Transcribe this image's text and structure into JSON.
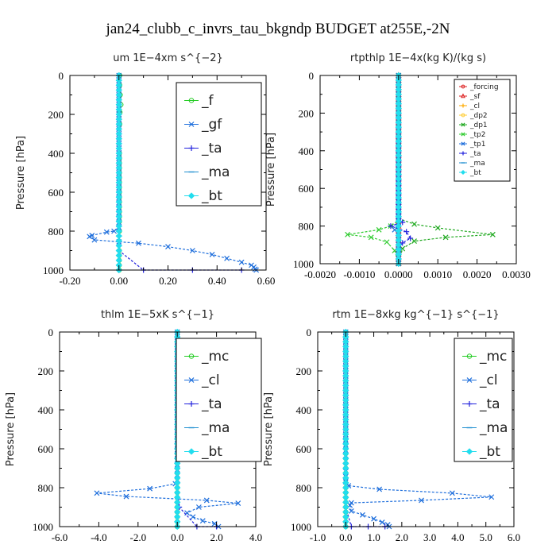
{
  "figure_title": "jan24_clubb_c_invrs_tau_bkgndp  BUDGET at255E,-2N",
  "chart_data": [
    {
      "type": "line",
      "title": "um   1E−4xm  s^{−2}",
      "ylabel": "Pressure [hPa]",
      "xlim": [
        -0.2,
        0.6
      ],
      "ylim": [
        1000,
        0
      ],
      "xticks": [
        "-0.20",
        "0.00",
        "0.20",
        "0.40",
        "0.60"
      ],
      "yticks": [
        "0",
        "200",
        "400",
        "600",
        "800",
        "1000"
      ],
      "legend_position": "top-right",
      "series": [
        {
          "name": "_f",
          "color": "#22cc22",
          "marker": "circle",
          "points": [
            [
              0.003,
              0
            ],
            [
              0.003,
              50
            ],
            [
              0.005,
              100
            ],
            [
              0.008,
              150
            ],
            [
              0.004,
              190
            ],
            [
              0.003,
              250
            ],
            [
              0.002,
              400
            ],
            [
              0.002,
              600
            ],
            [
              0.002,
              750
            ],
            [
              0.002,
              800
            ],
            [
              0.001,
              900
            ],
            [
              0.001,
              1000
            ]
          ]
        },
        {
          "name": "_gf",
          "color": "#1f6fdc",
          "marker": "x",
          "points": [
            [
              0,
              0
            ],
            [
              0,
              500
            ],
            [
              0,
              780
            ],
            [
              -0.02,
              800
            ],
            [
              -0.05,
              805
            ],
            [
              -0.11,
              822
            ],
            [
              -0.12,
              828
            ],
            [
              -0.1,
              845
            ],
            [
              0.0,
              855
            ],
            [
              0.08,
              862
            ],
            [
              0.2,
              880
            ],
            [
              0.3,
              900
            ],
            [
              0.38,
              920
            ],
            [
              0.44,
              940
            ],
            [
              0.5,
              960
            ],
            [
              0.54,
              975
            ],
            [
              0.55,
              985
            ],
            [
              0.555,
              995
            ],
            [
              0.56,
              1000
            ]
          ]
        },
        {
          "name": "_ta",
          "color": "#2222dd",
          "marker": "plus",
          "points": [
            [
              0,
              0
            ],
            [
              0,
              500
            ],
            [
              0,
              800
            ],
            [
              0,
              900
            ],
            [
              0.1,
              1000
            ],
            [
              0.3,
              1000
            ],
            [
              0.5,
              1000
            ]
          ]
        },
        {
          "name": "_ma",
          "color": "#1f8fd0",
          "marker": "dash",
          "points": [
            [
              0,
              0
            ],
            [
              0,
              1000
            ]
          ]
        },
        {
          "name": "_bt",
          "color": "#22ddee",
          "marker": "diamond",
          "points": [
            [
              0,
              0
            ],
            [
              0,
              1000
            ]
          ]
        }
      ]
    },
    {
      "type": "line",
      "title": "rtpthlp   1E−4x(kg K)/(kg s)",
      "ylabel": "Pressure [hPa]",
      "xlim": [
        -0.002,
        0.003
      ],
      "ylim": [
        1000,
        0
      ],
      "xticks": [
        "-0.0020",
        "-0.0010",
        "0.0000",
        "0.0010",
        "0.0020",
        "0.0030"
      ],
      "yticks": [
        "0",
        "200",
        "400",
        "600",
        "800",
        "1000"
      ],
      "legend_position": "top-right",
      "series": [
        {
          "name": "_forcing",
          "color": "#dd2222",
          "marker": "circle",
          "points": [
            [
              0,
              0
            ],
            [
              0,
              1000
            ]
          ]
        },
        {
          "name": "_sf",
          "color": "#dd2222",
          "marker": "triangle",
          "points": [
            [
              0,
              0
            ],
            [
              0,
              1000
            ]
          ]
        },
        {
          "name": "_cl",
          "color": "#ffaa00",
          "marker": "plus",
          "points": [
            [
              0,
              0
            ],
            [
              0,
              1000
            ]
          ]
        },
        {
          "name": "_dp2",
          "color": "#ffcc33",
          "marker": "circle",
          "points": [
            [
              0,
              0
            ],
            [
              0,
              1000
            ]
          ]
        },
        {
          "name": "_dp1",
          "color": "#22aa22",
          "marker": "x",
          "points": [
            [
              0,
              0
            ],
            [
              0,
              760
            ],
            [
              0.0004,
              790
            ],
            [
              0.001,
              810
            ],
            [
              0.0024,
              845
            ],
            [
              0.0012,
              860
            ],
            [
              0.0004,
              880
            ],
            [
              0.0001,
              920
            ],
            [
              0,
              1000
            ]
          ]
        },
        {
          "name": "_tp2",
          "color": "#33cc33",
          "marker": "x",
          "points": [
            [
              0,
              0
            ],
            [
              0,
              770
            ],
            [
              -0.0002,
              800
            ],
            [
              -0.0005,
              820
            ],
            [
              -0.0013,
              845
            ],
            [
              -0.0007,
              860
            ],
            [
              -0.0003,
              885
            ],
            [
              -0.0001,
              930
            ],
            [
              0,
              1000
            ]
          ]
        },
        {
          "name": "_tp1",
          "color": "#1f6fdc",
          "marker": "x",
          "points": [
            [
              0,
              0
            ],
            [
              0,
              780
            ],
            [
              -0.0001,
              820
            ],
            [
              0,
              850
            ],
            [
              0,
              1000
            ]
          ]
        },
        {
          "name": "_ta",
          "color": "#2222dd",
          "marker": "plus",
          "points": [
            [
              0,
              0
            ],
            [
              0,
              760
            ],
            [
              0.0001,
              780
            ],
            [
              -0.0002,
              800
            ],
            [
              0.0002,
              830
            ],
            [
              0.0003,
              865
            ],
            [
              0.0001,
              890
            ],
            [
              0,
              920
            ],
            [
              0,
              1000
            ]
          ]
        },
        {
          "name": "_ma",
          "color": "#1f8fd0",
          "marker": "dash",
          "points": [
            [
              0,
              0
            ],
            [
              0,
              1000
            ]
          ]
        },
        {
          "name": "_bt",
          "color": "#22ddee",
          "marker": "diamond",
          "points": [
            [
              0,
              0
            ],
            [
              0,
              1000
            ]
          ]
        }
      ]
    },
    {
      "type": "line",
      "title": "thlm   1E−5xK  s^{−1}",
      "ylabel": "Pressure [hPa]",
      "xlim": [
        -6.0,
        4.0
      ],
      "ylim": [
        1000,
        0
      ],
      "xticks": [
        "-6.0",
        "-4.0",
        "-2.0",
        "0.0",
        "2.0",
        "4.0"
      ],
      "yticks": [
        "0",
        "200",
        "400",
        "600",
        "800",
        "1000"
      ],
      "legend_position": "top-right",
      "series": [
        {
          "name": "_mc",
          "color": "#22cc22",
          "marker": "circle",
          "points": [
            [
              0,
              0
            ],
            [
              0,
              1000
            ]
          ]
        },
        {
          "name": "_cl",
          "color": "#1f6fdc",
          "marker": "x",
          "points": [
            [
              0,
              0
            ],
            [
              0,
              500
            ],
            [
              0,
              760
            ],
            [
              -0.1,
              780
            ],
            [
              -1.4,
              805
            ],
            [
              -4.1,
              828
            ],
            [
              -2.6,
              845
            ],
            [
              1.5,
              865
            ],
            [
              3.1,
              880
            ],
            [
              1.1,
              900
            ],
            [
              0.5,
              930
            ],
            [
              0.8,
              950
            ],
            [
              1.3,
              970
            ],
            [
              1.9,
              985
            ],
            [
              2.1,
              1000
            ]
          ]
        },
        {
          "name": "_ta",
          "color": "#2222dd",
          "marker": "plus",
          "points": [
            [
              0,
              0
            ],
            [
              0,
              800
            ],
            [
              0.1,
              900
            ],
            [
              1.0,
              1000
            ],
            [
              2.0,
              1000
            ]
          ]
        },
        {
          "name": "_ma",
          "color": "#1f8fd0",
          "marker": "dash",
          "points": [
            [
              0,
              0
            ],
            [
              0,
              1000
            ]
          ]
        },
        {
          "name": "_bt",
          "color": "#22ddee",
          "marker": "diamond",
          "points": [
            [
              0,
              0
            ],
            [
              0,
              1000
            ]
          ]
        }
      ]
    },
    {
      "type": "line",
      "title": "rtm   1E−8xkg  kg^{−1}  s^{−1}",
      "ylabel": "Pressure [hPa]",
      "xlim": [
        -1.0,
        6.0
      ],
      "ylim": [
        1000,
        0
      ],
      "xticks": [
        "-1.0",
        "0.0",
        "1.0",
        "2.0",
        "3.0",
        "4.0",
        "5.0",
        "6.0"
      ],
      "yticks": [
        "0",
        "200",
        "400",
        "600",
        "800",
        "1000"
      ],
      "legend_position": "top-right",
      "series": [
        {
          "name": "_mc",
          "color": "#22cc22",
          "marker": "circle",
          "points": [
            [
              0,
              0
            ],
            [
              0,
              1000
            ]
          ]
        },
        {
          "name": "_cl",
          "color": "#1f6fdc",
          "marker": "x",
          "points": [
            [
              0,
              0
            ],
            [
              0,
              500
            ],
            [
              0,
              770
            ],
            [
              0.1,
              790
            ],
            [
              1.2,
              808
            ],
            [
              3.8,
              828
            ],
            [
              5.2,
              848
            ],
            [
              2.7,
              865
            ],
            [
              0.2,
              878
            ],
            [
              0.15,
              890
            ],
            [
              0.2,
              920
            ],
            [
              0.6,
              940
            ],
            [
              1.0,
              960
            ],
            [
              1.3,
              978
            ],
            [
              1.5,
              990
            ],
            [
              1.55,
              1000
            ]
          ]
        },
        {
          "name": "_ta",
          "color": "#2222dd",
          "marker": "plus",
          "points": [
            [
              0,
              0
            ],
            [
              0,
              900
            ],
            [
              0.2,
              1000
            ],
            [
              0.8,
              1000
            ],
            [
              1.4,
              1000
            ]
          ]
        },
        {
          "name": "_ma",
          "color": "#1f8fd0",
          "marker": "dash",
          "points": [
            [
              0,
              0
            ],
            [
              0,
              1000
            ]
          ]
        },
        {
          "name": "_bt",
          "color": "#22ddee",
          "marker": "diamond",
          "points": [
            [
              0,
              0
            ],
            [
              0,
              1000
            ]
          ]
        }
      ]
    }
  ]
}
